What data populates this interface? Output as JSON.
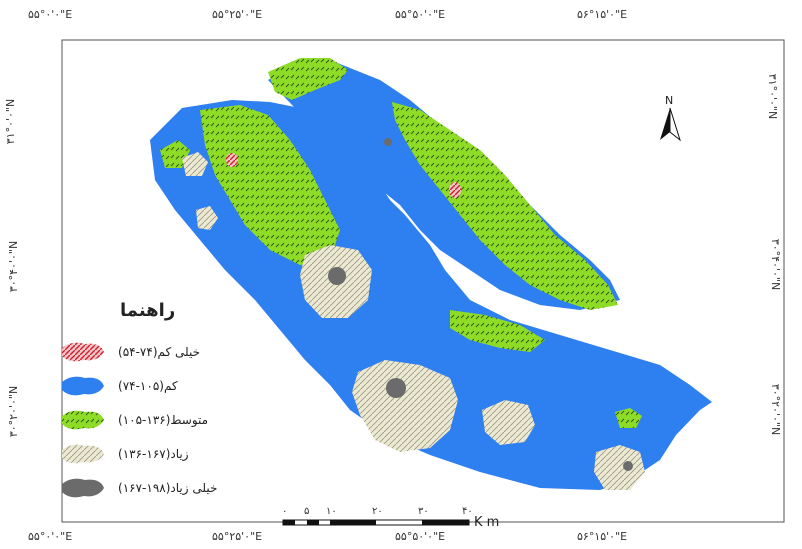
{
  "map": {
    "top_longitudes": [
      "۵۵°۰'۰\"E",
      "۵۵°۲۵'۰\"E",
      "۵۵°۵۰'۰\"E",
      "۵۶°۱۵'۰\"E"
    ],
    "bottom_longitudes": [
      "۵۵°۰'۰\"E",
      "۵۵°۲۵'۰\"E",
      "۵۵°۵۰'۰\"E",
      "۵۶°۱۵'۰\"E"
    ],
    "left_latitudes": [
      "۳۱°۰'۰\"N",
      "۳۰°۴۰'۰\"N",
      "۳۰°۲۰'۰\"N"
    ],
    "right_latitudes": [
      "۳۱°۰'۰\"N",
      "۳۰°۴۰'۰\"N",
      "۳۰°۲۰'۰\"N"
    ],
    "north_label": "N",
    "legend": {
      "title": "راهنما",
      "items": [
        {
          "label": "خیلی کم(۷۴-۵۴)",
          "color": "#e2434f",
          "pattern": "red-hatch"
        },
        {
          "label": "کم(۱۰۵-۷۴)",
          "color": "#2e7ff0",
          "pattern": "solid-blue"
        },
        {
          "label": "متوسط(۱۳۶-۱۰۵)",
          "color": "#8fdc27",
          "pattern": "green-dash"
        },
        {
          "label": "زیاد(۱۶۷-۱۳۶)",
          "color": "#ece9d2",
          "pattern": "cream-hatch"
        },
        {
          "label": "خیلی زیاد(۱۹۸-۱۶۷)",
          "color": "#6b6b6b",
          "pattern": "solid-gray"
        }
      ]
    },
    "scale_bar": {
      "ticks": [
        "۰",
        "۵",
        "۱۰",
        "۲۰",
        "۳۰",
        "۴۰"
      ],
      "unit": "K m"
    }
  }
}
